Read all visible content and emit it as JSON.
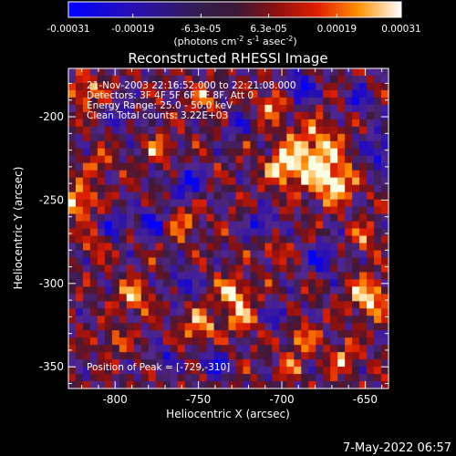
{
  "chart_data": {
    "type": "heatmap",
    "title": "Reconstructed RHESSI Image",
    "xlabel": "Heliocentric X (arcsec)",
    "ylabel": "Heliocentric Y (arcsec)",
    "xlim": [
      -828,
      -636
    ],
    "ylim": [
      -363,
      -171
    ],
    "xticks": [
      -800,
      -750,
      -700,
      -650
    ],
    "yticks": [
      -350,
      -300,
      -250,
      -200
    ],
    "colorbar": {
      "ticks": [
        "-0.00031",
        "-0.00019",
        "-6.3e-05",
        "6.3e-05",
        "0.00019",
        "0.00031"
      ],
      "tick_values": [
        -0.00031,
        -0.00019,
        -6.3e-05,
        6.3e-05,
        0.00019,
        0.00031
      ],
      "range": [
        -0.00031,
        0.00031
      ],
      "label_prefix": "(photons cm",
      "label_exp1": "-2",
      "label_mid": " s",
      "label_exp2": "-1",
      "label_suffix": " asec",
      "label_exp3": "-2",
      "label_close": ")"
    },
    "annotations": [
      "21-Nov-2003 22:16:52.000 to 22:21:08.000",
      "Detectors: 3F 4F 5F 6F 7F 8F, Att 0",
      "Energy Range: 25.0 - 50.0 keV",
      "Clean     Total counts: 3.22E+03"
    ],
    "peak_label": "Position of Peak = [-729,-310]",
    "peak": [
      -729,
      -310
    ],
    "blobs": [
      {
        "x": -681,
        "y": -224,
        "r": 18,
        "v": 1.0
      },
      {
        "x": -668,
        "y": -241,
        "r": 10,
        "v": 0.9
      },
      {
        "x": -700,
        "y": -231,
        "r": 9,
        "v": 0.8
      },
      {
        "x": -705,
        "y": -192,
        "r": 9,
        "v": 0.7
      },
      {
        "x": -729,
        "y": -306,
        "r": 9,
        "v": 0.95
      },
      {
        "x": -724,
        "y": -322,
        "r": 8,
        "v": 0.7
      },
      {
        "x": -648,
        "y": -308,
        "r": 11,
        "v": 0.95
      },
      {
        "x": -650,
        "y": -272,
        "r": 8,
        "v": 0.55
      },
      {
        "x": -822,
        "y": -251,
        "r": 10,
        "v": 0.9
      },
      {
        "x": -817,
        "y": -185,
        "r": 9,
        "v": 0.75
      },
      {
        "x": -810,
        "y": -228,
        "r": 7,
        "v": 0.55
      },
      {
        "x": -789,
        "y": -308,
        "r": 9,
        "v": 0.8
      },
      {
        "x": -760,
        "y": -263,
        "r": 9,
        "v": 0.6
      },
      {
        "x": -773,
        "y": -219,
        "r": 8,
        "v": 0.6
      },
      {
        "x": -747,
        "y": -190,
        "r": 8,
        "v": 0.6
      },
      {
        "x": -749,
        "y": -326,
        "r": 10,
        "v": 0.7
      },
      {
        "x": -688,
        "y": -333,
        "r": 9,
        "v": 0.6
      },
      {
        "x": -663,
        "y": -345,
        "r": 9,
        "v": 0.6
      },
      {
        "x": -705,
        "y": -280,
        "r": 7,
        "v": 0.5
      },
      {
        "x": -695,
        "y": -350,
        "r": 7,
        "v": 0.5
      },
      {
        "x": -812,
        "y": -277,
        "r": 7,
        "v": 0.5
      },
      {
        "x": -800,
        "y": -335,
        "r": 7,
        "v": 0.55
      }
    ],
    "dips": [
      {
        "x": -690,
        "y": -183,
        "r": 9,
        "v": -1.0
      },
      {
        "x": -757,
        "y": -240,
        "r": 9,
        "v": -0.9
      },
      {
        "x": -741,
        "y": -348,
        "r": 8,
        "v": -0.85
      },
      {
        "x": -778,
        "y": -263,
        "r": 9,
        "v": -0.8
      },
      {
        "x": -800,
        "y": -265,
        "r": 8,
        "v": -0.7
      },
      {
        "x": -712,
        "y": -265,
        "r": 8,
        "v": -0.8
      },
      {
        "x": -760,
        "y": -300,
        "r": 8,
        "v": -0.75
      },
      {
        "x": -702,
        "y": -320,
        "r": 7,
        "v": -0.7
      },
      {
        "x": -642,
        "y": -220,
        "r": 10,
        "v": -0.8
      },
      {
        "x": -653,
        "y": -190,
        "r": 8,
        "v": -0.7
      },
      {
        "x": -795,
        "y": -200,
        "r": 8,
        "v": -0.7
      },
      {
        "x": -770,
        "y": -345,
        "r": 7,
        "v": -0.6
      },
      {
        "x": -675,
        "y": -285,
        "r": 9,
        "v": -0.85
      },
      {
        "x": -727,
        "y": -205,
        "r": 7,
        "v": -0.65
      }
    ]
  },
  "footer": {
    "timestamp": "7-May-2022 06:57"
  }
}
